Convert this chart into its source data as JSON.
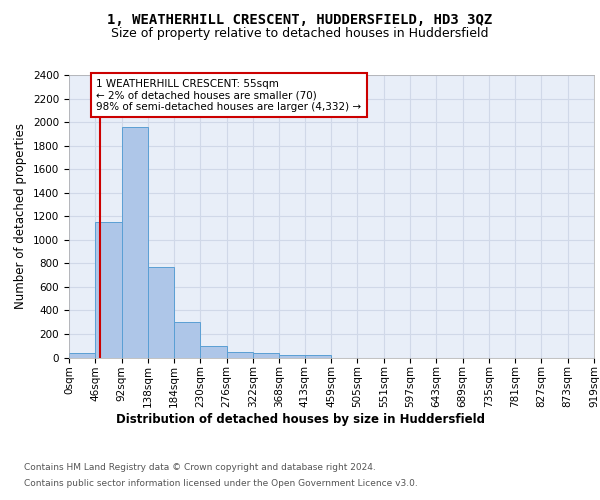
{
  "title": "1, WEATHERHILL CRESCENT, HUDDERSFIELD, HD3 3QZ",
  "subtitle": "Size of property relative to detached houses in Huddersfield",
  "xlabel": "Distribution of detached houses by size in Huddersfield",
  "ylabel": "Number of detached properties",
  "bin_edges": [
    0,
    46,
    92,
    138,
    184,
    230,
    276,
    322,
    368,
    413,
    459,
    505,
    551,
    597,
    643,
    689,
    735,
    781,
    827,
    873,
    919
  ],
  "bar_heights": [
    35,
    1150,
    1960,
    770,
    300,
    100,
    50,
    40,
    25,
    20,
    0,
    0,
    0,
    0,
    0,
    0,
    0,
    0,
    0,
    0
  ],
  "bar_color": "#aec6e8",
  "bar_edge_color": "#5a9fd4",
  "property_line_x": 55,
  "property_line_color": "#cc0000",
  "annotation_text": "1 WEATHERHILL CRESCENT: 55sqm\n← 2% of detached houses are smaller (70)\n98% of semi-detached houses are larger (4,332) →",
  "annotation_box_color": "#cc0000",
  "annotation_text_color": "#000000",
  "ylim": [
    0,
    2400
  ],
  "yticks": [
    0,
    200,
    400,
    600,
    800,
    1000,
    1200,
    1400,
    1600,
    1800,
    2000,
    2200,
    2400
  ],
  "grid_color": "#d0d8e8",
  "background_color": "#e8eef8",
  "footer_line1": "Contains HM Land Registry data © Crown copyright and database right 2024.",
  "footer_line2": "Contains public sector information licensed under the Open Government Licence v3.0.",
  "title_fontsize": 10,
  "subtitle_fontsize": 9,
  "axis_label_fontsize": 8.5,
  "tick_fontsize": 7.5,
  "footer_fontsize": 6.5
}
